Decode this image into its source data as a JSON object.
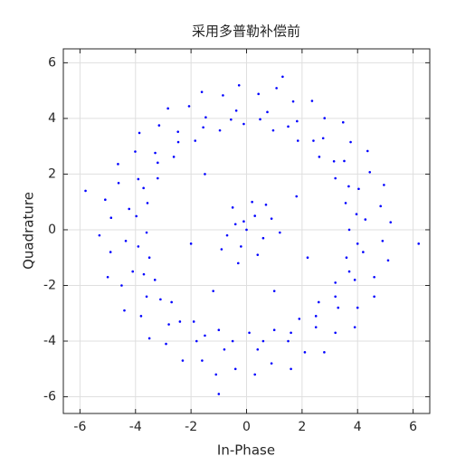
{
  "chart_data": {
    "type": "scatter",
    "title": "采用多普勒补偿前",
    "xlabel": "In-Phase",
    "ylabel": "Quadrature",
    "color": "#0000ff",
    "grid": true,
    "xlim": [
      -6.6,
      6.6
    ],
    "ylim": [
      -6.6,
      6.5
    ],
    "xticks": [
      -6,
      -4,
      -2,
      0,
      2,
      4,
      6
    ],
    "yticks": [
      -6,
      -4,
      -2,
      0,
      2,
      4,
      6
    ],
    "x": [
      3.7,
      4.28,
      4.83,
      3.96,
      5.19,
      3.57,
      4.04,
      4.44,
      3.68,
      4.95,
      3.2,
      3.52,
      3.75,
      3.15,
      4.36,
      2.62,
      2.76,
      2.81,
      2.41,
      3.48,
      1.85,
      1.82,
      1.68,
      1.5,
      2.36,
      0.96,
      0.75,
      0.43,
      0.49,
      1.08,
      -0.1,
      -0.37,
      -0.85,
      -0.56,
      -0.27,
      -0.96,
      -1.47,
      -2.07,
      -1.56,
      -1.61,
      -1.85,
      -2.47,
      -3.15,
      -2.46,
      -2.83,
      -2.62,
      -3.29,
      -4.01,
      -3.2,
      -3.86,
      -3.2,
      -3.9,
      -4.61,
      -3.71,
      -4.63,
      -3.57,
      -4.23,
      -4.88,
      -3.97,
      -5.09,
      -3.6,
      -4.35,
      -4.9,
      -3.9,
      -5.3,
      -3.5,
      -4.1,
      -4.5,
      -3.7,
      -5.0,
      -3.3,
      -3.6,
      -3.8,
      -3.1,
      -4.4,
      -2.7,
      -2.8,
      -2.9,
      -2.4,
      -3.5,
      -1.9,
      -1.8,
      -1.6,
      -1.5,
      -2.3,
      -1.0,
      -0.8,
      -0.4,
      -0.5,
      -1.1,
      0.1,
      0.4,
      0.9,
      0.6,
      0.3,
      1.0,
      1.5,
      2.1,
      1.6,
      1.6,
      1.9,
      2.5,
      3.2,
      2.5,
      2.8,
      2.6,
      3.3,
      4.0,
      3.2,
      3.9,
      3.2,
      3.9,
      4.6,
      3.7,
      4.6,
      3.6,
      4.2,
      4.9,
      4.0,
      5.1,
      0,
      0.3,
      -0.4,
      0.6,
      -0.2,
      0.9,
      -0.7,
      0.2,
      -0.5,
      0.4,
      -0.1,
      0.7,
      -0.9,
      1.2,
      -0.3,
      -1.5,
      1.8,
      -2.0,
      1.0,
      2.2,
      -1.2,
      6.2,
      -5.8,
      -1.0,
      1.3
    ],
    "values": [
      0,
      0.37,
      0.85,
      0.56,
      0.27,
      0.96,
      1.47,
      2.07,
      1.56,
      1.61,
      1.85,
      2.47,
      3.15,
      2.46,
      2.83,
      2.62,
      3.29,
      4.01,
      3.2,
      3.86,
      3.2,
      3.9,
      4.61,
      3.71,
      4.63,
      3.57,
      4.23,
      4.88,
      3.97,
      5.09,
      3.8,
      4.28,
      4.83,
      3.96,
      5.19,
      3.57,
      4.04,
      4.44,
      3.68,
      4.95,
      3.2,
      3.52,
      3.75,
      3.15,
      4.36,
      2.62,
      2.76,
      2.81,
      2.41,
      3.48,
      1.85,
      1.82,
      1.68,
      1.5,
      2.36,
      0.96,
      0.75,
      0.43,
      0.49,
      1.08,
      -0.1,
      -0.4,
      -0.8,
      -0.6,
      -0.2,
      -1.0,
      -1.5,
      -2.0,
      -1.6,
      -1.7,
      -1.8,
      -2.4,
      -3.1,
      -2.5,
      -2.9,
      -2.6,
      -3.4,
      -4.1,
      -3.3,
      -3.9,
      -3.3,
      -4.0,
      -4.7,
      -3.8,
      -4.7,
      -3.6,
      -4.3,
      -5.0,
      -4.0,
      -5.2,
      -3.7,
      -4.3,
      -4.8,
      -4.0,
      -5.2,
      -3.6,
      -4.0,
      -4.4,
      -3.7,
      -5.0,
      -3.2,
      -3.5,
      -3.7,
      -3.1,
      -4.4,
      -2.6,
      -2.8,
      -2.8,
      -2.4,
      -3.5,
      -1.9,
      -1.8,
      -1.7,
      -1.5,
      -2.4,
      -1.0,
      -0.8,
      -0.4,
      -0.5,
      -1.1,
      0,
      0.5,
      0.2,
      -0.3,
      -0.6,
      0.4,
      -0.2,
      1.0,
      0.8,
      -0.9,
      0.3,
      0.9,
      -0.7,
      -0.1,
      -1.2,
      2.0,
      1.2,
      -0.5,
      -2.2,
      -1.0,
      -2.2,
      -0.5,
      1.4,
      -5.9,
      5.5
    ]
  }
}
